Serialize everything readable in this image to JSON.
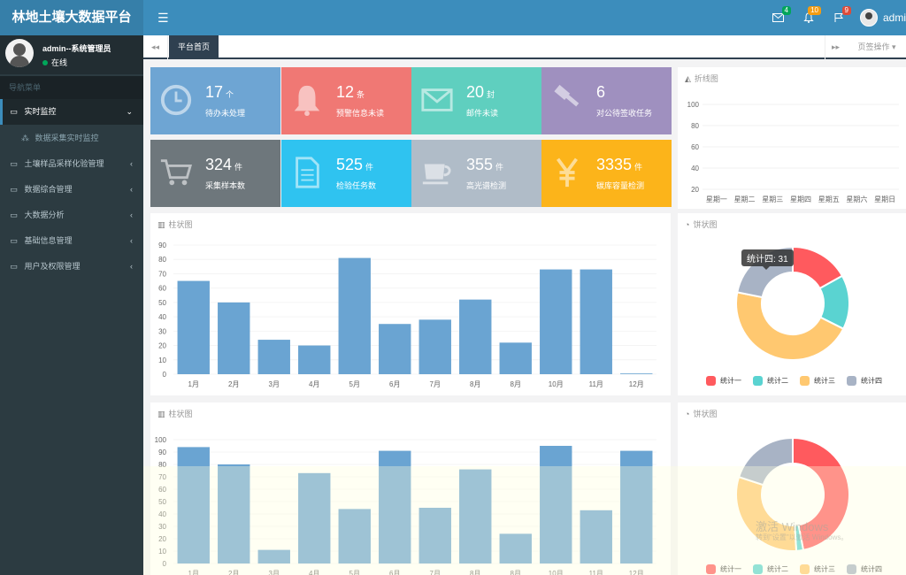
{
  "header": {
    "title": "林地土壤大数据平台",
    "menu_icon": "☰",
    "icons": [
      {
        "name": "mail-icon",
        "glyph": "✉",
        "badge": "4",
        "color": "#00a65a"
      },
      {
        "name": "bell-icon",
        "glyph": "🔔",
        "badge": "10",
        "color": "#f39c12"
      },
      {
        "name": "flag-icon",
        "glyph": "⚑",
        "badge": "9",
        "color": "#dd4b39"
      }
    ],
    "user": "admi"
  },
  "sidebar": {
    "user_name": "admin--系统管理员",
    "user_status": "在线",
    "nav_header": "导航菜单",
    "items": [
      {
        "label": "实时监控",
        "icon": "▭",
        "caret": "⌄",
        "active": true
      },
      {
        "label": "土壤样品采样化验管理",
        "icon": "▭",
        "caret": "‹"
      },
      {
        "label": "数据综合管理",
        "icon": "▭",
        "caret": "‹"
      },
      {
        "label": "大数据分析",
        "icon": "▭",
        "caret": "‹"
      },
      {
        "label": "基础信息管理",
        "icon": "▭",
        "caret": "‹"
      },
      {
        "label": "用户及权限管理",
        "icon": "▭",
        "caret": "‹"
      }
    ],
    "sub_item": {
      "label": "数据采集实时监控",
      "icon": "⁂"
    }
  },
  "tabs": {
    "prev": "◂◂",
    "active": "平台首页",
    "next": "▸▸",
    "ops": "页签操作 ▾"
  },
  "stats": [
    {
      "num": "17",
      "unit": "个",
      "label": "待办未处理",
      "color": "#6ea5d3",
      "icon": "clock-icon"
    },
    {
      "num": "12",
      "unit": "条",
      "label": "预警信息未读",
      "color": "#f07874",
      "icon": "bell-icon"
    },
    {
      "num": "20",
      "unit": "封",
      "label": "邮件未读",
      "color": "#5fcfbf",
      "icon": "envelope-icon"
    },
    {
      "num": "6",
      "unit": "",
      "label": "对公待签收任务",
      "color": "#9f90bf",
      "icon": "gavel-icon"
    },
    {
      "num": "324",
      "unit": "件",
      "label": "采集样本数",
      "color": "#6e777c",
      "icon": "cart-icon"
    },
    {
      "num": "525",
      "unit": "件",
      "label": "检验任务数",
      "color": "#2fc3f0",
      "icon": "document-icon"
    },
    {
      "num": "355",
      "unit": "件",
      "label": "高光谱检测",
      "color": "#b0bcc8",
      "icon": "coffee-icon"
    },
    {
      "num": "3335",
      "unit": "件",
      "label": "碳库容量检测",
      "color": "#fcb41a",
      "icon": "yen-icon"
    }
  ],
  "line_panel": {
    "title": "折线图"
  },
  "bar_panel_1": {
    "title": "柱状图"
  },
  "pie_panel_1": {
    "title": "饼状图",
    "tooltip": "统计四: 31"
  },
  "bar_panel_2": {
    "title": "柱状图"
  },
  "pie_panel_2": {
    "title": "饼状图",
    "watermark": "激活 Windows",
    "watermark_sub": "转到\"设置\"以激活 Windows。"
  },
  "chart_data": [
    {
      "type": "line",
      "title": "折线图",
      "x": [
        "星期一",
        "星期二",
        "星期三",
        "星期四",
        "星期五",
        "星期六",
        "星期日"
      ],
      "yticks": [
        20,
        40,
        60,
        80,
        100
      ],
      "ylim": [
        20,
        100
      ],
      "series": []
    },
    {
      "type": "bar",
      "title": "柱状图",
      "categories": [
        "1月",
        "2月",
        "3月",
        "4月",
        "5月",
        "6月",
        "7月",
        "8月",
        "8月",
        "10月",
        "11月",
        "12月"
      ],
      "values": [
        65,
        50,
        24,
        20,
        81,
        35,
        38,
        52,
        22,
        73,
        73,
        0.5
      ],
      "yticks": [
        0,
        10,
        20,
        30,
        40,
        50,
        60,
        70,
        80,
        90
      ],
      "ylim": [
        0,
        90
      ],
      "color": "#6aa4d2"
    },
    {
      "type": "pie",
      "title": "饼状图",
      "labels": [
        "统计一",
        "统计二",
        "统计三",
        "统计四"
      ],
      "values": [
        24,
        22,
        65,
        31
      ],
      "colors": [
        "#ff5a5e",
        "#5ad3d1",
        "#ffc870",
        "#a8b3c5"
      ]
    },
    {
      "type": "bar",
      "title": "柱状图",
      "categories": [
        "1月",
        "2月",
        "3月",
        "4月",
        "5月",
        "6月",
        "7月",
        "8月",
        "8月",
        "10月",
        "11月",
        "12月"
      ],
      "values": [
        94,
        80,
        11,
        73,
        44,
        91,
        45,
        76,
        24,
        95,
        43,
        91
      ],
      "yticks": [
        0,
        10,
        20,
        30,
        40,
        50,
        60,
        70,
        80,
        90,
        100
      ],
      "ylim": [
        0,
        100
      ],
      "color": "#6aa4d2"
    },
    {
      "type": "pie",
      "title": "饼状图",
      "labels": [
        "统计一",
        "统计二",
        "统计三",
        "统计四"
      ],
      "values": [
        47,
        2,
        31,
        20
      ],
      "colors": [
        "#ff5a5e",
        "#5ad3d1",
        "#ffc870",
        "#a8b3c5"
      ]
    }
  ]
}
